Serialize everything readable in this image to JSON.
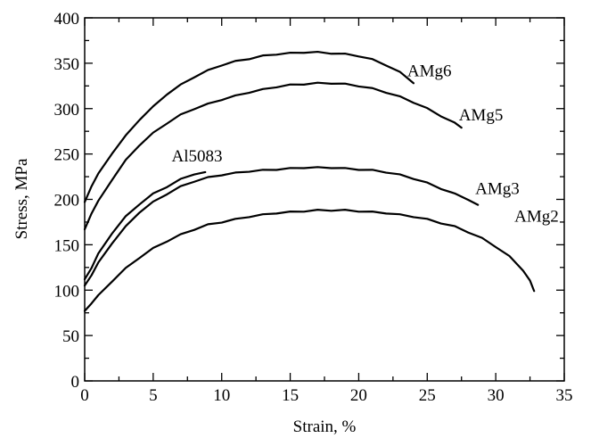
{
  "chart_data": {
    "type": "line",
    "title": "",
    "xlabel": "Strain, %",
    "ylabel": "Stress, MPa",
    "xlim": [
      0,
      35
    ],
    "ylim": [
      0,
      400
    ],
    "xticks": [
      "0",
      "5",
      "10",
      "15",
      "20",
      "25",
      "30",
      "35"
    ],
    "yticks": [
      "0",
      "50",
      "100",
      "150",
      "200",
      "250",
      "300",
      "350",
      "400"
    ],
    "grid": false,
    "legend": "none",
    "series": [
      {
        "name": "AMg6",
        "x": [
          0,
          0.5,
          1,
          2,
          3,
          4,
          5,
          6,
          7,
          8,
          9,
          10,
          11,
          12,
          13,
          14,
          15,
          16,
          17,
          18,
          19,
          20,
          21,
          22,
          23,
          24
        ],
        "y": [
          197,
          215,
          228,
          251,
          270,
          288,
          302,
          316,
          326,
          335,
          342,
          348,
          352,
          355,
          358,
          360,
          361,
          362,
          362,
          361,
          360,
          358,
          354,
          348,
          340,
          328
        ]
      },
      {
        "name": "AMg5",
        "x": [
          0,
          0.5,
          1,
          2,
          3,
          4,
          5,
          6,
          7,
          8,
          9,
          10,
          11,
          12,
          13,
          14,
          15,
          16,
          17,
          18,
          19,
          20,
          21,
          22,
          23,
          24,
          25,
          26,
          27,
          27.5
        ],
        "y": [
          167,
          185,
          198,
          222,
          243,
          260,
          273,
          284,
          293,
          300,
          305,
          310,
          314,
          318,
          321,
          324,
          326,
          327,
          328,
          328,
          327,
          325,
          322,
          318,
          313,
          307,
          300,
          292,
          284,
          279
        ]
      },
      {
        "name": "Al5083",
        "x": [
          0,
          0.5,
          1,
          2,
          3,
          4,
          5,
          6,
          7,
          8,
          8.8
        ],
        "y": [
          112,
          125,
          140,
          163,
          181,
          195,
          206,
          214,
          222,
          228,
          230
        ]
      },
      {
        "name": "AMg3",
        "x": [
          0,
          0.5,
          1,
          2,
          3,
          4,
          5,
          6,
          7,
          8,
          9,
          10,
          11,
          12,
          13,
          14,
          15,
          16,
          17,
          18,
          19,
          20,
          21,
          22,
          23,
          24,
          25,
          26,
          27,
          28,
          28.7
        ],
        "y": [
          105,
          117,
          130,
          152,
          170,
          186,
          197,
          206,
          214,
          220,
          224,
          227,
          229,
          231,
          232,
          233,
          234,
          235,
          235,
          235,
          234,
          233,
          232,
          230,
          227,
          223,
          218,
          212,
          206,
          200,
          194
        ]
      },
      {
        "name": "AMg2",
        "x": [
          0,
          0.5,
          1,
          2,
          3,
          4,
          5,
          6,
          7,
          8,
          9,
          10,
          11,
          12,
          13,
          14,
          15,
          16,
          17,
          18,
          19,
          20,
          21,
          22,
          23,
          24,
          25,
          26,
          27,
          28,
          29,
          30,
          31,
          32,
          32.5,
          32.8
        ],
        "y": [
          77,
          86,
          94,
          110,
          124,
          136,
          146,
          154,
          161,
          167,
          172,
          175,
          178,
          181,
          183,
          185,
          186,
          187,
          188,
          188,
          188,
          187,
          186,
          185,
          183,
          181,
          178,
          174,
          170,
          164,
          157,
          148,
          137,
          122,
          110,
          99
        ]
      }
    ]
  }
}
